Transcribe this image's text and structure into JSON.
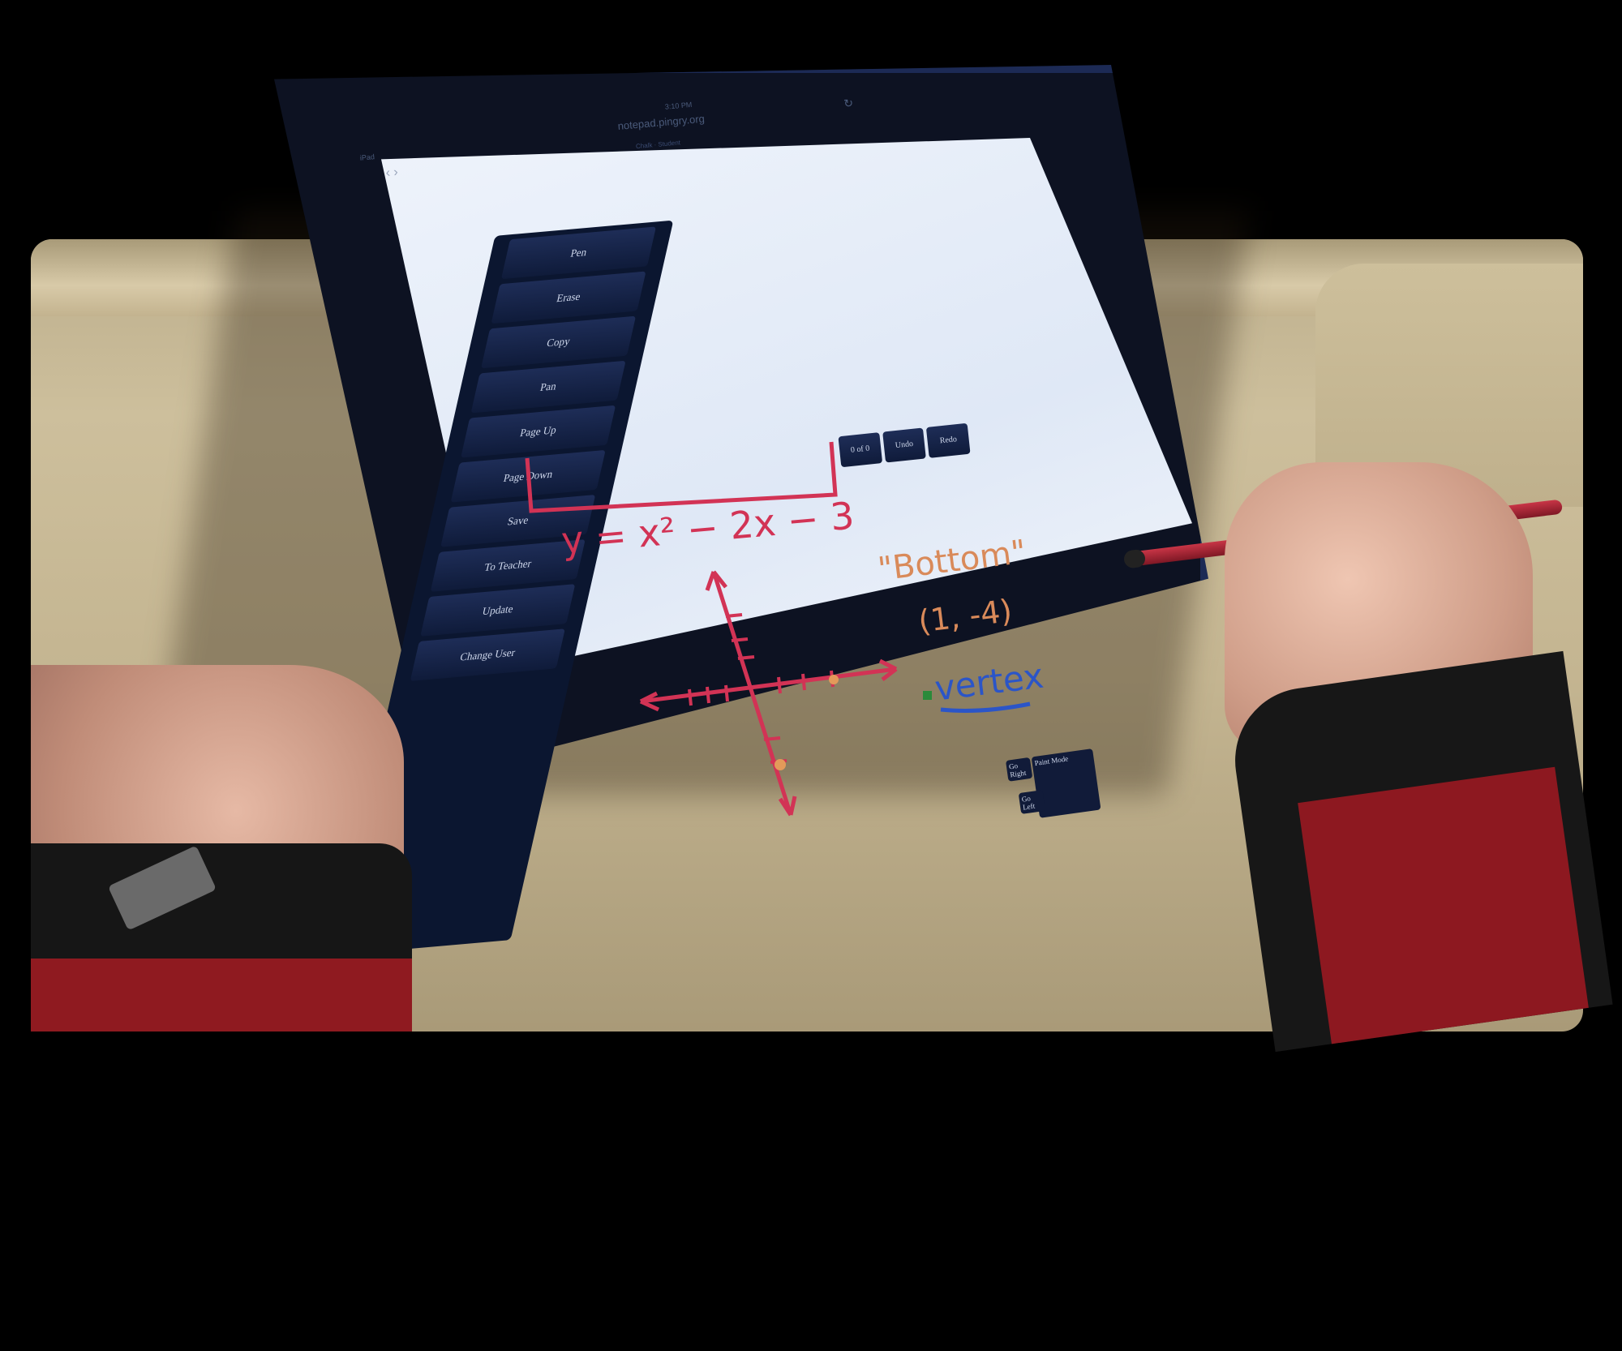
{
  "browser": {
    "device_label": "iPad",
    "time": "3:10 PM",
    "url": "notepad.pingry.org",
    "subtitle": "Chalk · Student",
    "reload_icon": "reload-icon"
  },
  "sidebar": {
    "buttons": [
      "Pen",
      "Erase",
      "Copy",
      "Pan",
      "Page Up",
      "Page Down",
      "Save",
      "To Teacher",
      "Update",
      "Change User"
    ]
  },
  "top_tools": {
    "page_counter": "0 of 0",
    "undo": "Undo",
    "redo": "Redo"
  },
  "corner_tools": {
    "go_right": "Go Right",
    "go_left": "Go Left",
    "paint_mode": "Paint Mode"
  },
  "handwriting": {
    "equation": "y = x² − 2x − 3",
    "label_bottom": "\"Bottom\"",
    "point": "(1, -4)",
    "label_vertex": "vertex"
  },
  "colors": {
    "ink_red": "#d23355",
    "ink_blue": "#2b55c8",
    "panel_navy": "#0b1630",
    "tablet_case": "#1c2a55"
  }
}
